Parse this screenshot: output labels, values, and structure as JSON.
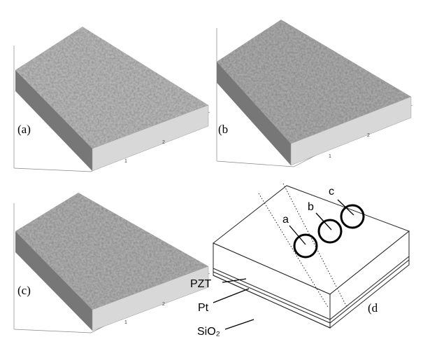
{
  "panels": [
    {
      "label": "(a)",
      "ticks": [
        "1",
        "2"
      ]
    },
    {
      "label": "(b",
      "ticks": [
        "1",
        "2"
      ]
    },
    {
      "label": "(c)",
      "ticks": [
        "1",
        "2"
      ]
    }
  ],
  "diagram": {
    "label": "(d",
    "spots": [
      "a",
      "b",
      "c"
    ],
    "layers": [
      "PZT",
      "Pt",
      "SiO₂"
    ]
  }
}
